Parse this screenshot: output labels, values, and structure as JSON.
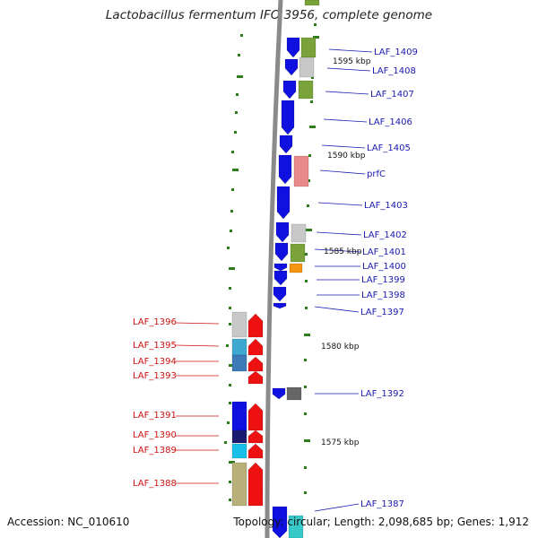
{
  "title": "Lactobacillus fermentum IFO 3956, complete genome",
  "footer": {
    "accession": "Accession: NC_010610",
    "summary": "Topology: circular; Length: 2,098,685 bp; Genes: 1,912"
  },
  "kbp_marks": [
    "1595 kbp",
    "1590 kbp",
    "1585 kbp",
    "1580 kbp",
    "1575 kbp"
  ],
  "genes_forward": [
    "LAF_1409",
    "LAF_1408",
    "LAF_1407",
    "LAF_1406",
    "LAF_1405",
    "prfC",
    "LAF_1403",
    "LAF_1402",
    "LAF_1401",
    "LAF_1400",
    "LAF_1399",
    "LAF_1398",
    "LAF_1397",
    "LAF_1392",
    "LAF_1387"
  ],
  "genes_reverse": [
    "LAF_1396",
    "LAF_1395",
    "LAF_1394",
    "LAF_1393",
    "LAF_1391",
    "LAF_1390",
    "LAF_1389",
    "LAF_1388"
  ],
  "colors": {
    "forward_strand": "#1010e0",
    "reverse_strand": "#ee1111",
    "forward_label": "#1a1ab0",
    "reverse_label": "#cc1111",
    "backbone": "#8a8a8a",
    "tick": "#2e7d1a"
  }
}
